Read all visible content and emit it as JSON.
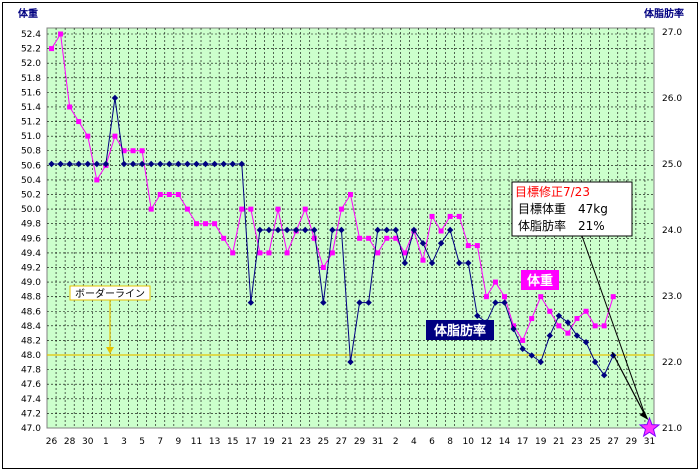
{
  "chart_data": {
    "type": "line",
    "left_axis_title": "体重",
    "right_axis_title": "体脂肪率",
    "x_labels": [
      "26",
      "",
      "28",
      "",
      "30",
      "",
      "1",
      "",
      "3",
      "",
      "5",
      "",
      "7",
      "",
      "9",
      "",
      "11",
      "",
      "13",
      "",
      "15",
      "",
      "17",
      "",
      "19",
      "",
      "21",
      "",
      "23",
      "",
      "25",
      "",
      "27",
      "",
      "29",
      "",
      "31",
      "",
      "2",
      "",
      "4",
      "",
      "6",
      "",
      "8",
      "",
      "10",
      "",
      "12",
      "",
      "14",
      "",
      "17",
      "",
      "19",
      "",
      "21",
      "",
      "23",
      "",
      "25",
      "",
      "27",
      "",
      "29",
      "",
      "31"
    ],
    "y_left": {
      "min": 47.0,
      "max": 52.4,
      "step": 0.2
    },
    "y_right": {
      "min": 21.0,
      "max": 27.0,
      "step": 1.0
    },
    "grid": true,
    "series": [
      {
        "name": "体重",
        "axis": "left",
        "color": "#ff00ff",
        "values": [
          52.2,
          52.4,
          51.4,
          51.2,
          51.0,
          50.4,
          50.6,
          51.0,
          50.8,
          50.8,
          50.8,
          50.0,
          50.2,
          50.2,
          50.2,
          50.0,
          49.8,
          49.8,
          49.8,
          49.6,
          49.4,
          50.0,
          50.0,
          49.4,
          49.4,
          50.0,
          49.4,
          49.7,
          50.0,
          49.6,
          49.2,
          49.4,
          50.0,
          50.2,
          49.6,
          49.6,
          49.4,
          49.6,
          49.6,
          49.4,
          49.7,
          49.3,
          49.9,
          49.7,
          49.9,
          49.9,
          49.5,
          49.5,
          48.8,
          49.0,
          48.8,
          48.4,
          48.2,
          48.5,
          48.8,
          48.6,
          48.4,
          48.3,
          48.5,
          48.6,
          48.4,
          48.4,
          48.8
        ]
      },
      {
        "name": "体脂肪率",
        "axis": "right",
        "color": "#000080",
        "values": [
          25.0,
          25.0,
          25.0,
          25.0,
          25.0,
          25.0,
          25.0,
          26.0,
          25.0,
          25.0,
          25.0,
          25.0,
          25.0,
          25.0,
          25.0,
          25.0,
          25.0,
          25.0,
          25.0,
          25.0,
          25.0,
          25.0,
          22.9,
          24.0,
          24.0,
          24.0,
          24.0,
          24.0,
          24.0,
          24.0,
          22.9,
          24.0,
          24.0,
          22.0,
          22.9,
          22.9,
          24.0,
          24.0,
          24.0,
          23.5,
          24.0,
          23.8,
          23.5,
          23.8,
          24.0,
          23.5,
          23.5,
          22.7,
          22.6,
          22.9,
          22.9,
          22.5,
          22.2,
          22.1,
          22.0,
          22.4,
          22.7,
          22.6,
          22.4,
          22.3,
          22.0,
          21.8,
          22.1
        ]
      }
    ],
    "annotations": {
      "border_line": {
        "label": "ボーダーライン",
        "value": 48.0
      },
      "goal_box": {
        "line1": "目標修正7/23",
        "line2": "目標体重　47kg",
        "line3": "体脂肪率　21%"
      },
      "weight_label": "体重",
      "bodyfat_label": "体脂肪率",
      "target_value_left": 47.0
    }
  }
}
